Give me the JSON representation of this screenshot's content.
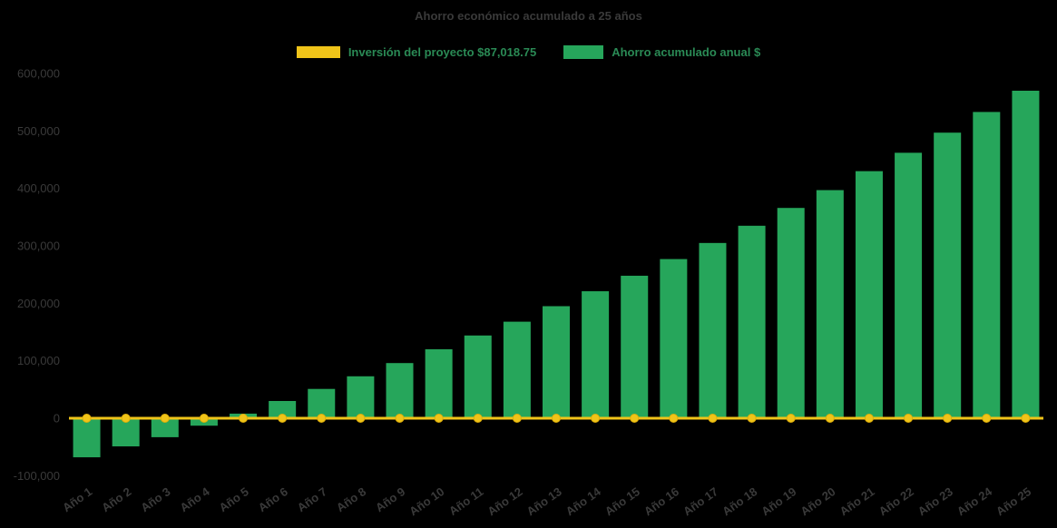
{
  "title": "Ahorro económico acumulado a 25 años",
  "legend": {
    "items": [
      {
        "label": "Inversión del proyecto $87,018.75",
        "swatch": "yellow-line-swatch"
      },
      {
        "label": "Ahorro acumulado anual $",
        "swatch": "green-bar-swatch"
      }
    ]
  },
  "colors": {
    "background": "#000000",
    "bar": "#26a65b",
    "line": "#f0c419",
    "axis_text": "#3a3a3a",
    "title_text": "#3a3a3a",
    "legend_text": "#2a8a55"
  },
  "chart_data": {
    "type": "bar",
    "title": "Ahorro económico acumulado a 25 años",
    "categories": [
      "Año 1",
      "Año 2",
      "Año 3",
      "Año 4",
      "Año 5",
      "Año 6",
      "Año 7",
      "Año 8",
      "Año 9",
      "Año 10",
      "Año 11",
      "Año 12",
      "Año 13",
      "Año 14",
      "Año 15",
      "Año 16",
      "Año 17",
      "Año 18",
      "Año 19",
      "Año 20",
      "Año 21",
      "Año 22",
      "Año 23",
      "Año 24",
      "Año 25"
    ],
    "series": [
      {
        "name": "Ahorro acumulado anual $",
        "type": "bar",
        "color": "#26a65b",
        "values": [
          -68000,
          -49000,
          -33000,
          -13000,
          8000,
          30000,
          51000,
          73000,
          96000,
          120000,
          144000,
          168000,
          195000,
          221000,
          248000,
          277000,
          305000,
          335000,
          366000,
          397000,
          430000,
          462000,
          497000,
          533000,
          570000
        ]
      },
      {
        "name": "Inversión del proyecto $87,018.75",
        "type": "line",
        "color": "#f0c419",
        "values": [
          0,
          0,
          0,
          0,
          0,
          0,
          0,
          0,
          0,
          0,
          0,
          0,
          0,
          0,
          0,
          0,
          0,
          0,
          0,
          0,
          0,
          0,
          0,
          0,
          0
        ]
      }
    ],
    "ylim": [
      -100000,
      600000
    ],
    "ytick_step": 100000,
    "ytick_labels": [
      "-100,000",
      "0",
      "100,000",
      "200,000",
      "300,000",
      "400,000",
      "500,000",
      "600,000"
    ],
    "xlabel": "",
    "ylabel": "",
    "grid": false,
    "legend_position": "top-center"
  }
}
